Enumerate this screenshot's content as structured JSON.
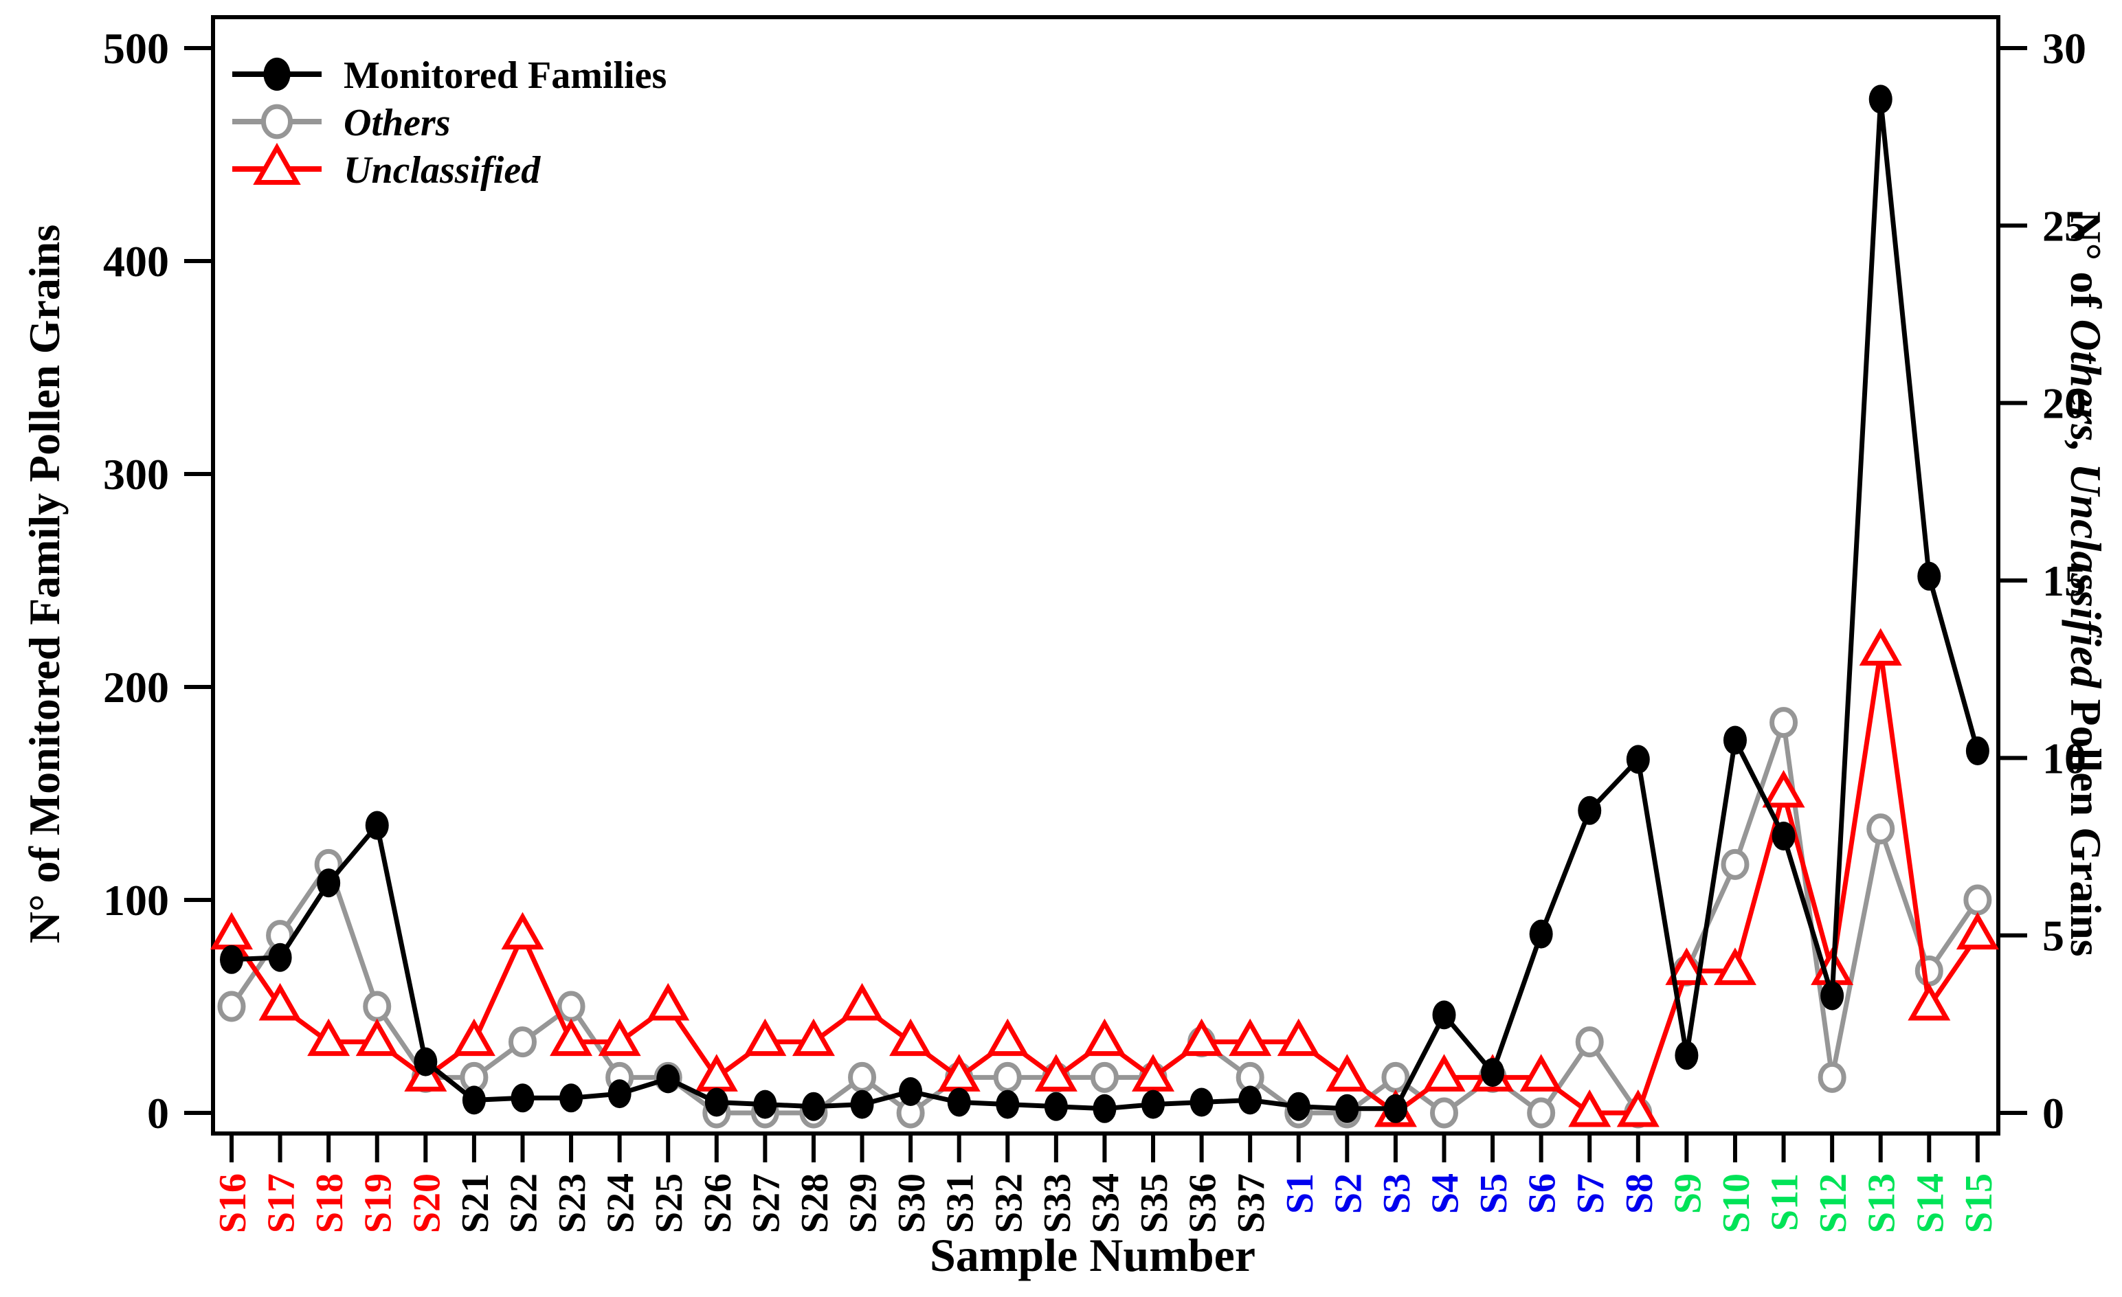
{
  "chart_data": {
    "type": "line",
    "title": "",
    "xlabel": "Sample Number",
    "grid": false,
    "legend_position": "top-left",
    "categories": [
      "S16",
      "S17",
      "S18",
      "S19",
      "S20",
      "S21",
      "S22",
      "S23",
      "S24",
      "S25",
      "S26",
      "S27",
      "S28",
      "S29",
      "S30",
      "S31",
      "S32",
      "S33",
      "S34",
      "S35",
      "S36",
      "S37",
      "S1",
      "S2",
      "S3",
      "S4",
      "S5",
      "S6",
      "S7",
      "S8",
      "S9",
      "S10",
      "S11",
      "S12",
      "S13",
      "S14",
      "S15"
    ],
    "x_axis": {
      "category_colors": [
        "#ff0000",
        "#ff0000",
        "#ff0000",
        "#ff0000",
        "#ff0000",
        "#000000",
        "#000000",
        "#000000",
        "#000000",
        "#000000",
        "#000000",
        "#000000",
        "#000000",
        "#000000",
        "#000000",
        "#000000",
        "#000000",
        "#000000",
        "#000000",
        "#000000",
        "#000000",
        "#000000",
        "#0000ee",
        "#0000ee",
        "#0000ee",
        "#0000ee",
        "#0000ee",
        "#0000ee",
        "#0000ee",
        "#0000ee",
        "#00e357",
        "#00e357",
        "#00e357",
        "#00e357",
        "#00e357",
        "#00e357",
        "#00e357"
      ]
    },
    "left_axis": {
      "label": "N° of Monitored Family Pollen Grains",
      "ticks": [
        0,
        100,
        200,
        300,
        400,
        500
      ],
      "range": [
        0,
        500
      ]
    },
    "right_axis": {
      "label_parts": [
        {
          "text": "N° of ",
          "italic": false
        },
        {
          "text": "Others, Unclassified",
          "italic": true
        },
        {
          "text": " Pollen Grains",
          "italic": false
        }
      ],
      "ticks": [
        0,
        5,
        10,
        15,
        20,
        25,
        30
      ],
      "range": [
        0,
        30
      ]
    },
    "series": [
      {
        "name": "Monitored Families",
        "italic": false,
        "color": "#000000",
        "marker": "filled-circle",
        "axis": "left",
        "values": [
          72,
          73,
          108,
          135,
          24,
          6,
          7,
          7,
          9,
          16,
          5,
          4,
          3,
          4,
          10,
          5,
          4,
          3,
          2,
          4,
          5,
          6,
          3,
          2,
          2,
          46,
          19,
          84,
          142,
          166,
          27,
          175,
          130,
          55,
          476,
          252,
          170
        ]
      },
      {
        "name": "Others",
        "italic": true,
        "color": "#969696",
        "marker": "open-circle",
        "axis": "right",
        "values": [
          3,
          5,
          7,
          3,
          1,
          1,
          2,
          3,
          1,
          1,
          0,
          0,
          0,
          1,
          0,
          1,
          1,
          1,
          1,
          1,
          2,
          1,
          0,
          0,
          1,
          0,
          1,
          0,
          2,
          0,
          4,
          7,
          11,
          1,
          8,
          4,
          6
        ]
      },
      {
        "name": "Unclassified",
        "italic": true,
        "color": "#ff0000",
        "marker": "open-triangle",
        "axis": "right",
        "values": [
          5,
          3,
          2,
          2,
          1,
          2,
          5,
          2,
          2,
          3,
          1,
          2,
          2,
          3,
          2,
          1,
          2,
          1,
          2,
          1,
          2,
          2,
          2,
          1,
          0,
          1,
          1,
          1,
          0,
          0,
          4,
          4,
          9,
          4,
          13,
          3,
          5
        ]
      }
    ]
  }
}
